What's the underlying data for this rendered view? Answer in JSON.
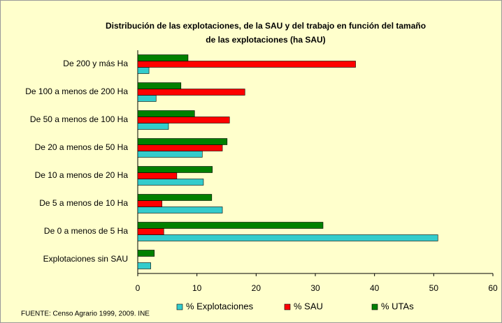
{
  "chart_data": {
    "type": "bar",
    "orientation": "horizontal",
    "title": [
      "Distribución de las explotaciones, de la SAU y del trabajo en función del tamaño",
      "de las explotaciones (ha SAU)"
    ],
    "categories": [
      "De 200 y más Ha",
      "De 100 a menos de 200 Ha",
      "De 50 a menos de 100 Ha",
      "De 20 a menos de 50 Ha",
      "De 10 a menos de 20 Ha",
      "De 5 a menos de 10 Ha",
      "De 0 a menos de 5 Ha",
      "Explotaciones sin SAU"
    ],
    "series": [
      {
        "name": "% Explotaciones",
        "color": "#33cccc",
        "values": [
          1.9,
          3.1,
          5.2,
          10.9,
          11.1,
          14.3,
          50.7,
          2.2
        ]
      },
      {
        "name": "% SAU",
        "color": "#ff0000",
        "values": [
          36.8,
          18.1,
          15.5,
          14.3,
          6.6,
          4.1,
          4.4,
          null
        ]
      },
      {
        "name": "% UTAs",
        "color": "#008000",
        "values": [
          8.5,
          7.3,
          9.6,
          15.1,
          12.6,
          12.5,
          31.3,
          2.8
        ]
      }
    ],
    "xlim": [
      0,
      60
    ],
    "xticks": [
      0,
      10,
      20,
      30,
      40,
      50,
      60
    ],
    "legend": "bottom",
    "source": "FUENTE: Censo Agrario 1999, 2009. INE"
  }
}
